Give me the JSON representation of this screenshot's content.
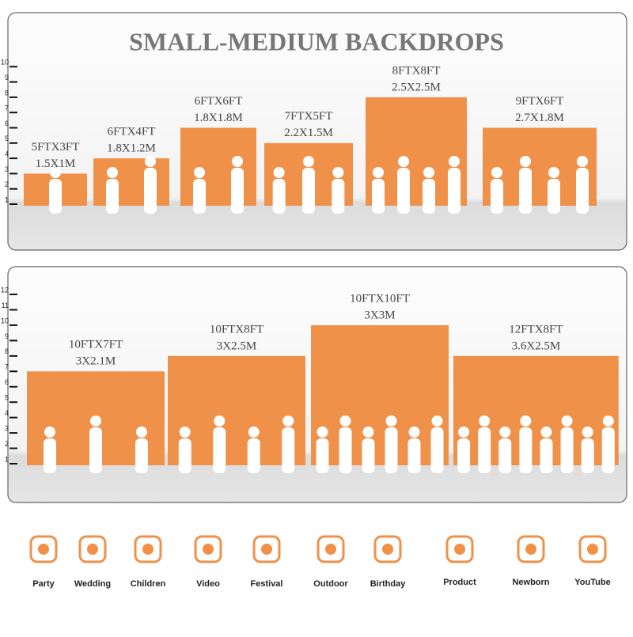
{
  "title": "SMALL-MEDIUM BACKDROPS",
  "panels": [
    {
      "ruler": [
        1,
        2,
        3,
        4,
        5,
        6,
        7,
        8,
        9,
        10
      ],
      "backdrops": [
        {
          "label_ft": "5FTX3FT",
          "label_m": "1.5X1M",
          "width": 5,
          "height": 3
        },
        {
          "label_ft": "6FTX4FT",
          "label_m": "1.8X1.2M",
          "width": 6,
          "height": 4
        },
        {
          "label_ft": "6FTX6FT",
          "label_m": "1.8X1.8M",
          "width": 6,
          "height": 6
        },
        {
          "label_ft": "7FTX5FT",
          "label_m": "2.2X1.5M",
          "width": 7,
          "height": 5
        },
        {
          "label_ft": "8FTX8FT",
          "label_m": "2.5X2.5M",
          "width": 8,
          "height": 8
        },
        {
          "label_ft": "9FTX6FT",
          "label_m": "2.7X1.8M",
          "width": 9,
          "height": 6
        }
      ]
    },
    {
      "ruler": [
        1,
        2,
        3,
        4,
        5,
        6,
        7,
        8,
        9,
        10,
        11,
        12
      ],
      "backdrops": [
        {
          "label_ft": "10FTX7FT",
          "label_m": "3X2.1M",
          "width": 10,
          "height": 7
        },
        {
          "label_ft": "10FTX8FT",
          "label_m": "3X2.5M",
          "width": 10,
          "height": 8
        },
        {
          "label_ft": "10FTX10FT",
          "label_m": "3X3M",
          "width": 10,
          "height": 10
        },
        {
          "label_ft": "12FTX8FT",
          "label_m": "3.6X2.5M",
          "width": 12,
          "height": 8
        }
      ]
    }
  ],
  "uses": [
    "Party",
    "Wedding",
    "Children",
    "Video",
    "Festival",
    "Outdoor",
    "Birthday",
    "Product",
    "Newborn",
    "YouTube"
  ]
}
